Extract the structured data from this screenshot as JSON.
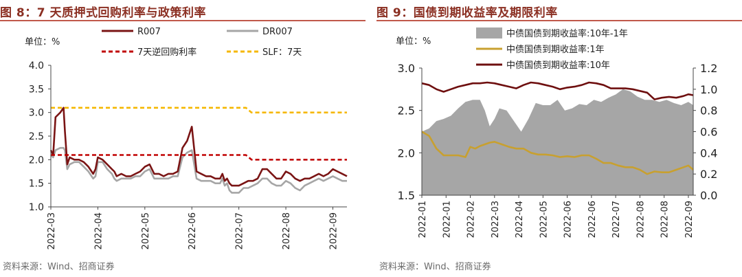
{
  "figures": [
    {
      "title": "图 8：7 天质押式回购利率与政策利率",
      "source": "资料来源：Wind、招商证券",
      "unit_label": "单位：%"
    },
    {
      "title": "图 9：国债到期收益率及期限利率",
      "source": "资料来源：Wind、招商证券",
      "unit_label": "单位：%"
    }
  ],
  "chart_data": [
    {
      "type": "line",
      "title": "7 天质押式回购利率与政策利率",
      "ylabel": "单位：%",
      "ylim": [
        1.0,
        4.0
      ],
      "yticks": [
        "1.0",
        "1.5",
        "2.0",
        "2.5",
        "3.0",
        "3.5",
        "4.0"
      ],
      "categories": [
        "2022-03",
        "2022-04",
        "2022-05",
        "2022-06",
        "2022-07",
        "2022-08",
        "2022-09"
      ],
      "x_domain": [
        0,
        6.3
      ],
      "legend": [
        "R007",
        "DR007",
        "7天逆回购利率",
        "SLF：7天"
      ],
      "series": [
        {
          "name": "R007",
          "color": "#7a1414",
          "style": "solid",
          "x": [
            0,
            0.05,
            0.1,
            0.2,
            0.27,
            0.3,
            0.35,
            0.4,
            0.5,
            0.6,
            0.7,
            0.8,
            0.9,
            0.95,
            1.0,
            1.1,
            1.2,
            1.3,
            1.35,
            1.4,
            1.5,
            1.6,
            1.7,
            1.8,
            1.9,
            2.0,
            2.1,
            2.2,
            2.3,
            2.4,
            2.5,
            2.6,
            2.7,
            2.8,
            2.9,
            3.0,
            3.1,
            3.2,
            3.3,
            3.4,
            3.5,
            3.6,
            3.65,
            3.7,
            3.75,
            3.8,
            3.85,
            3.9,
            4.0,
            4.1,
            4.2,
            4.3,
            4.4,
            4.5,
            4.6,
            4.7,
            4.8,
            4.9,
            5.0,
            5.1,
            5.2,
            5.3,
            5.4,
            5.5,
            5.6,
            5.7,
            5.8,
            5.9,
            6.0,
            6.1,
            6.2,
            6.3
          ],
          "values": [
            2.2,
            2.1,
            2.9,
            3.0,
            3.1,
            2.6,
            1.9,
            2.05,
            2.0,
            2.0,
            1.95,
            1.85,
            1.7,
            1.8,
            2.05,
            2.0,
            1.9,
            1.8,
            1.75,
            1.65,
            1.7,
            1.65,
            1.65,
            1.7,
            1.75,
            1.85,
            1.9,
            1.7,
            1.7,
            1.65,
            1.7,
            1.7,
            1.75,
            2.25,
            2.4,
            2.7,
            1.75,
            1.7,
            1.65,
            1.65,
            1.6,
            1.6,
            1.7,
            1.55,
            1.6,
            1.5,
            1.45,
            1.45,
            1.45,
            1.5,
            1.55,
            1.55,
            1.6,
            1.8,
            1.8,
            1.7,
            1.6,
            1.6,
            1.75,
            1.7,
            1.6,
            1.55,
            1.6,
            1.6,
            1.65,
            1.7,
            1.65,
            1.7,
            1.8,
            1.75,
            1.7,
            1.65
          ]
        },
        {
          "name": "DR007",
          "color": "#a6a6a6",
          "style": "solid",
          "x": [
            0,
            0.05,
            0.1,
            0.2,
            0.27,
            0.3,
            0.35,
            0.4,
            0.5,
            0.6,
            0.7,
            0.8,
            0.9,
            0.95,
            1.0,
            1.1,
            1.2,
            1.3,
            1.35,
            1.4,
            1.5,
            1.6,
            1.7,
            1.8,
            1.9,
            2.0,
            2.1,
            2.2,
            2.3,
            2.4,
            2.5,
            2.6,
            2.7,
            2.8,
            2.9,
            3.0,
            3.1,
            3.2,
            3.3,
            3.4,
            3.5,
            3.6,
            3.65,
            3.7,
            3.75,
            3.8,
            3.85,
            3.9,
            4.0,
            4.1,
            4.2,
            4.3,
            4.4,
            4.5,
            4.6,
            4.7,
            4.8,
            4.9,
            5.0,
            5.1,
            5.2,
            5.3,
            5.4,
            5.5,
            5.6,
            5.7,
            5.8,
            5.9,
            6.0,
            6.1,
            6.2,
            6.3
          ],
          "values": [
            2.1,
            2.05,
            2.2,
            2.25,
            2.25,
            2.2,
            1.8,
            1.9,
            1.95,
            1.95,
            1.85,
            1.75,
            1.6,
            1.65,
            1.95,
            1.95,
            1.8,
            1.7,
            1.6,
            1.55,
            1.6,
            1.6,
            1.6,
            1.65,
            1.65,
            1.75,
            1.8,
            1.6,
            1.6,
            1.6,
            1.6,
            1.65,
            1.65,
            2.05,
            2.15,
            2.2,
            1.6,
            1.55,
            1.55,
            1.55,
            1.5,
            1.5,
            1.6,
            1.45,
            1.5,
            1.35,
            1.3,
            1.3,
            1.3,
            1.4,
            1.4,
            1.45,
            1.5,
            1.6,
            1.6,
            1.5,
            1.45,
            1.45,
            1.55,
            1.5,
            1.4,
            1.35,
            1.45,
            1.5,
            1.55,
            1.6,
            1.55,
            1.6,
            1.65,
            1.6,
            1.55,
            1.55
          ]
        },
        {
          "name": "7天逆回购利率",
          "color": "#c00000",
          "style": "dashed",
          "x": [
            0,
            4.15,
            4.27,
            6.3
          ],
          "values": [
            2.1,
            2.1,
            2.0,
            2.0
          ]
        },
        {
          "name": "SLF：7天",
          "color": "#f5b700",
          "style": "dashed",
          "x": [
            0,
            4.15,
            4.27,
            6.3
          ],
          "values": [
            3.1,
            3.1,
            3.0,
            3.0
          ]
        }
      ]
    },
    {
      "type": "line",
      "title": "国债到期收益率及期限利率",
      "ylabel": "单位：%",
      "ylim": [
        1.5,
        3.0
      ],
      "yticks": [
        "1.5",
        "2.0",
        "2.5",
        "3.0"
      ],
      "y2lim": [
        0.0,
        1.2
      ],
      "y2ticks": [
        "0.0",
        "0.2",
        "0.4",
        "0.6",
        "0.8",
        "1.0",
        "1.2"
      ],
      "categories": [
        "2022-01",
        "2022-01",
        "2022-02",
        "2022-03",
        "2022-04",
        "2022-05",
        "2022-06",
        "2022-06",
        "2022-07",
        "2022-08",
        "2022-08",
        "2022-09"
      ],
      "x_domain": [
        0,
        11.2
      ],
      "legend": [
        "中债国债到期收益率:10年-1年",
        "中债国债到期收益率:1年",
        "中债国债到期收益率:10年"
      ],
      "series": [
        {
          "name": "中债国债到期收益率:10年-1年",
          "type": "area",
          "axis": "right",
          "color": "#a6a6a6",
          "x": [
            0,
            0.3,
            0.6,
            0.9,
            1.2,
            1.5,
            1.8,
            2.1,
            2.4,
            2.6,
            2.8,
            3.0,
            3.2,
            3.5,
            3.8,
            4.1,
            4.4,
            4.7,
            5.0,
            5.3,
            5.6,
            5.9,
            6.2,
            6.5,
            6.8,
            7.1,
            7.4,
            7.7,
            8.0,
            8.3,
            8.6,
            8.9,
            9.2,
            9.5,
            9.8,
            10.1,
            10.4,
            10.7,
            11.0,
            11.2
          ],
          "values": [
            0.6,
            0.63,
            0.7,
            0.72,
            0.75,
            0.82,
            0.88,
            0.9,
            0.9,
            0.8,
            0.65,
            0.72,
            0.82,
            0.8,
            0.7,
            0.6,
            0.72,
            0.87,
            0.85,
            0.85,
            0.9,
            0.8,
            0.82,
            0.86,
            0.85,
            0.9,
            0.88,
            0.92,
            0.95,
            1.0,
            0.98,
            0.93,
            0.9,
            0.9,
            0.88,
            0.9,
            0.87,
            0.85,
            0.88,
            0.85
          ]
        },
        {
          "name": "中债国债到期收益率:1年",
          "type": "line",
          "axis": "left",
          "color": "#c8a02f",
          "x": [
            0,
            0.3,
            0.6,
            0.9,
            1.2,
            1.5,
            1.8,
            2.0,
            2.2,
            2.4,
            2.6,
            2.8,
            3.0,
            3.3,
            3.6,
            3.9,
            4.2,
            4.5,
            4.8,
            5.1,
            5.4,
            5.7,
            6.0,
            6.3,
            6.6,
            6.9,
            7.2,
            7.5,
            7.8,
            8.1,
            8.4,
            8.7,
            9.0,
            9.3,
            9.6,
            9.9,
            10.2,
            10.5,
            10.8,
            11.0,
            11.2
          ],
          "values": [
            2.25,
            2.2,
            2.05,
            1.97,
            1.97,
            1.97,
            1.95,
            2.07,
            2.05,
            2.08,
            2.1,
            2.12,
            2.13,
            2.1,
            2.07,
            2.05,
            2.05,
            2.0,
            1.98,
            1.98,
            1.97,
            1.95,
            1.96,
            1.95,
            1.97,
            1.97,
            1.93,
            1.88,
            1.88,
            1.85,
            1.83,
            1.83,
            1.8,
            1.75,
            1.78,
            1.77,
            1.77,
            1.8,
            1.83,
            1.85,
            1.8
          ]
        },
        {
          "name": "中债国债到期收益率:10年",
          "type": "line",
          "axis": "left",
          "color": "#6e0f0f",
          "x": [
            0,
            0.3,
            0.6,
            0.9,
            1.2,
            1.5,
            1.8,
            2.1,
            2.4,
            2.7,
            3.0,
            3.3,
            3.6,
            3.9,
            4.2,
            4.5,
            4.8,
            5.1,
            5.4,
            5.7,
            6.0,
            6.3,
            6.6,
            6.9,
            7.2,
            7.5,
            7.8,
            8.1,
            8.4,
            8.7,
            9.0,
            9.3,
            9.6,
            9.9,
            10.2,
            10.5,
            10.8,
            11.0,
            11.2
          ],
          "values": [
            2.82,
            2.8,
            2.75,
            2.72,
            2.75,
            2.78,
            2.8,
            2.82,
            2.82,
            2.83,
            2.82,
            2.8,
            2.78,
            2.76,
            2.8,
            2.83,
            2.82,
            2.8,
            2.78,
            2.75,
            2.77,
            2.78,
            2.8,
            2.83,
            2.82,
            2.8,
            2.76,
            2.76,
            2.76,
            2.75,
            2.73,
            2.71,
            2.63,
            2.65,
            2.66,
            2.65,
            2.67,
            2.69,
            2.68
          ]
        }
      ]
    }
  ]
}
